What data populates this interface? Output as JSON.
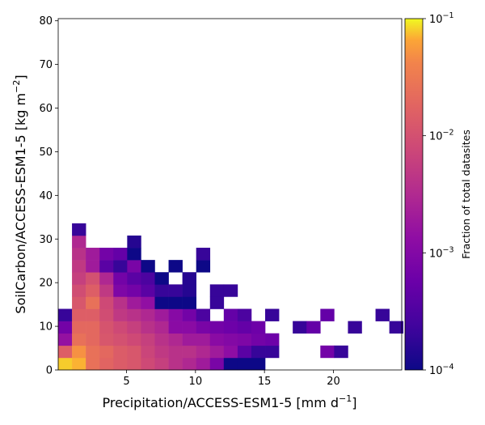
{
  "chart_data": {
    "type": "heatmap",
    "xlabel": {
      "main": "Precipitation/ACCESS-ESM1-5 [mm d",
      "sup": "−1",
      "tail": "]"
    },
    "ylabel": {
      "main": "SoilCarbon/ACCESS-ESM1-5 [kg m",
      "sup": "−2",
      "tail": "]"
    },
    "xlim": [
      0.05,
      24.95
    ],
    "ylim": [
      0,
      80.5
    ],
    "xticks": [
      5,
      10,
      15,
      20
    ],
    "xtick_labels": [
      "5",
      "10",
      "15",
      "20"
    ],
    "yticks": [
      0,
      10,
      20,
      30,
      40,
      50,
      60,
      70,
      80
    ],
    "ytick_labels": [
      "0",
      "10",
      "20",
      "30",
      "40",
      "50",
      "60",
      "70",
      "80"
    ],
    "x_bin_width": 1.0,
    "x_bin_start": 0.05,
    "y_bin_height": 2.8,
    "colorbar": {
      "label": "Fraction of total datasites",
      "scale": "log",
      "colormap": "plasma",
      "range": [
        0.0001,
        0.1
      ],
      "ticks": [
        {
          "value": 0.1,
          "base": "10",
          "exp": "−1"
        },
        {
          "value": 0.01,
          "base": "10",
          "exp": "−2"
        },
        {
          "value": 0.001,
          "base": "10",
          "exp": "−3"
        },
        {
          "value": 0.0001,
          "base": "10",
          "exp": "−4"
        }
      ]
    },
    "rows": [
      [
        0.08,
        0.07,
        0.025,
        0.018,
        0.014,
        0.012,
        0.008,
        0.006,
        0.004,
        0.003,
        0.002,
        0.0008,
        0.0001,
        0.0001,
        0.0001
      ],
      [
        0.015,
        0.05,
        0.025,
        0.02,
        0.014,
        0.012,
        0.007,
        0.005,
        0.004,
        0.004,
        0.003,
        0.002,
        0.0013,
        0.0004,
        0.0002,
        0.0002,
        null,
        null,
        null,
        0.0007,
        0.0002
      ],
      [
        0.0015,
        0.025,
        0.02,
        0.012,
        0.01,
        0.008,
        0.006,
        0.004,
        0.003,
        0.002,
        0.002,
        0.0012,
        0.001,
        0.0009,
        0.0007,
        0.0006
      ],
      [
        0.0007,
        0.02,
        0.02,
        0.011,
        0.008,
        0.006,
        0.004,
        0.003,
        0.0012,
        0.0012,
        0.0008,
        0.0007,
        0.0006,
        0.0005,
        0.0006,
        null,
        null,
        0.0002,
        0.0005,
        null,
        null,
        0.0002,
        null,
        null,
        0.0002
      ],
      [
        0.0002,
        0.015,
        0.015,
        0.009,
        0.005,
        0.004,
        0.003,
        0.002,
        0.0011,
        0.0007,
        0.0003,
        null,
        0.0005,
        0.0003,
        null,
        0.0002,
        null,
        null,
        null,
        0.0005,
        null,
        null,
        null,
        0.0002
      ],
      [
        null,
        0.012,
        0.025,
        0.008,
        0.004,
        0.002,
        0.0014,
        0.0001,
        0.0001,
        0.0001,
        null,
        0.0002
      ],
      [
        null,
        0.009,
        0.015,
        0.005,
        0.0009,
        0.0007,
        0.0004,
        0.0002,
        0.0002,
        0.00015,
        null,
        0.0002,
        0.0002
      ],
      [
        null,
        0.006,
        0.01,
        0.003,
        0.0007,
        0.0004,
        0.0003,
        0.0001,
        null,
        0.00015
      ],
      [
        null,
        0.005,
        0.002,
        0.0004,
        0.0002,
        0.0008,
        0.0001,
        null,
        0.0001,
        null,
        0.0001
      ],
      [
        null,
        0.004,
        0.002,
        0.0007,
        0.0005,
        0.0001,
        null,
        null,
        null,
        null,
        0.0002
      ],
      [
        null,
        0.003,
        null,
        null,
        null,
        0.00015
      ],
      [
        null,
        0.0002
      ]
    ]
  }
}
